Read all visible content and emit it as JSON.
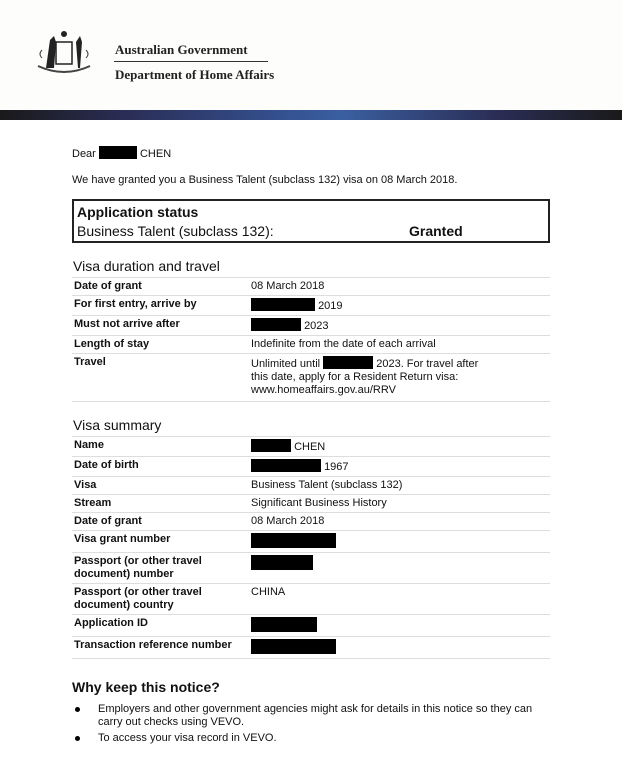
{
  "header": {
    "gov": "Australian Government",
    "dept": "Department of Home Affairs",
    "crest": "coat-of-arms"
  },
  "salutation": {
    "dear": "Dear",
    "surname": "CHEN"
  },
  "intro": "We have granted you a Business Talent (subclass 132) visa on 08 March 2018.",
  "status": {
    "title": "Application status",
    "visa": "Business Talent (subclass 132):",
    "result": "Granted"
  },
  "duration": {
    "heading": "Visa duration and travel",
    "rows": [
      {
        "k": "Date of grant",
        "v": "08 March 2018"
      },
      {
        "k": "For first entry, arrive by",
        "v": "2019"
      },
      {
        "k": "Must not arrive after",
        "v": "2023"
      },
      {
        "k": "Length of stay",
        "v": "Indefinite from the date of each arrival"
      },
      {
        "k": "Travel",
        "v1": "Unlimited until",
        "v2": "2023. For travel after this date, apply for a Resident Return visa:",
        "link": "www.homeaffairs.gov.au/RRV"
      }
    ]
  },
  "summary": {
    "heading": "Visa summary",
    "rows": [
      {
        "k": "Name",
        "v": "CHEN"
      },
      {
        "k": "Date of birth",
        "v": "1967"
      },
      {
        "k": "Visa",
        "v": "Business Talent (subclass 132)"
      },
      {
        "k": "Stream",
        "v": "Significant Business History"
      },
      {
        "k": "Date of grant",
        "v": "08 March 2018"
      },
      {
        "k": "Visa grant number",
        "v": ""
      },
      {
        "k": "Passport (or other travel document) number",
        "v": ""
      },
      {
        "k": "Passport (or other travel document) country",
        "v": "CHINA"
      },
      {
        "k": "Application ID",
        "v": ""
      },
      {
        "k": "Transaction reference number",
        "v": ""
      }
    ]
  },
  "why": {
    "heading": "Why keep this notice?",
    "bullets": [
      "Employers and other government agencies might ask for details in this notice so they can carry out checks using VEVO.",
      "To access your visa record in VEVO."
    ]
  }
}
